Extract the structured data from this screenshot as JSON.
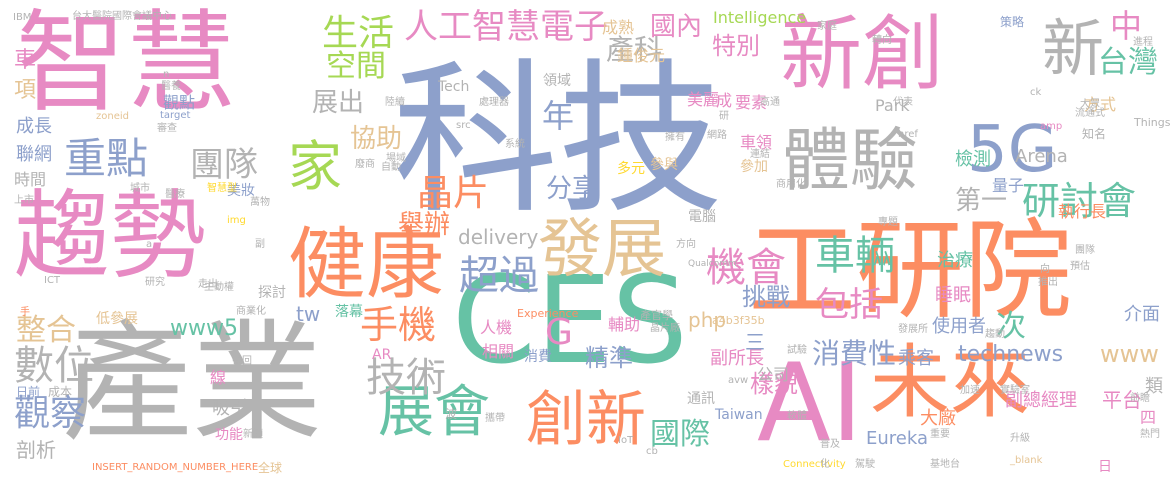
{
  "palette": {
    "teal": "#66c2a5",
    "orange": "#fc8d62",
    "blue": "#8da0cb",
    "pink": "#e78ac3",
    "green": "#a6d854",
    "yellow": "#ffd92f",
    "tan": "#e5c494",
    "gray": "#b3b3b3"
  },
  "words": [
    {
      "text": "科技",
      "color": "#8da0cb"
    },
    {
      "text": "產業",
      "color": "#b3b3b3"
    },
    {
      "text": "CES",
      "color": "#66c2a5"
    },
    {
      "text": "工研院",
      "color": "#fc8d62"
    },
    {
      "text": "智慧",
      "color": "#e78ac3"
    },
    {
      "text": "趨勢",
      "color": "#e78ac3"
    },
    {
      "text": "新創",
      "color": "#e78ac3"
    },
    {
      "text": "AI",
      "color": "#e78ac3"
    },
    {
      "text": "未來",
      "color": "#fc8d62"
    },
    {
      "text": "健康",
      "color": "#fc8d62"
    },
    {
      "text": "體驗",
      "color": "#b3b3b3"
    },
    {
      "text": "5G",
      "color": "#8da0cb"
    },
    {
      "text": "發展",
      "color": "#e5c494"
    },
    {
      "text": "創新",
      "color": "#fc8d62"
    },
    {
      "text": "展會",
      "color": "#66c2a5"
    },
    {
      "text": "新",
      "color": "#b3b3b3"
    },
    {
      "text": "家",
      "color": "#a6d854"
    },
    {
      "text": "生活",
      "color": "#a6d854"
    },
    {
      "text": "人工智慧電子",
      "color": "#e78ac3"
    },
    {
      "text": "重點",
      "color": "#8da0cb"
    },
    {
      "text": "團隊",
      "color": "#b3b3b3"
    },
    {
      "text": "空間",
      "color": "#a6d854"
    },
    {
      "text": "產科",
      "color": "#b3b3b3"
    },
    {
      "text": "國內",
      "color": "#e78ac3"
    },
    {
      "text": "特別",
      "color": "#e78ac3"
    },
    {
      "text": "中",
      "color": "#e78ac3"
    },
    {
      "text": "台灣",
      "color": "#66c2a5"
    },
    {
      "text": "晶片",
      "color": "#fc8d62"
    },
    {
      "text": "研討會",
      "color": "#66c2a5"
    },
    {
      "text": "機會",
      "color": "#e78ac3"
    },
    {
      "text": "車輛",
      "color": "#66c2a5"
    },
    {
      "text": "超過",
      "color": "#8da0cb"
    },
    {
      "text": "手機",
      "color": "#fc8d62"
    },
    {
      "text": "技術",
      "color": "#b3b3b3"
    },
    {
      "text": "數位",
      "color": "#b3b3b3"
    },
    {
      "text": "觀察",
      "color": "#8da0cb"
    },
    {
      "text": "整合",
      "color": "#e5c494"
    },
    {
      "text": "國際",
      "color": "#66c2a5"
    },
    {
      "text": "消費性",
      "color": "#8da0cb"
    },
    {
      "text": "包括",
      "color": "#e78ac3"
    },
    {
      "text": "年",
      "color": "#8da0cb"
    },
    {
      "text": "展出",
      "color": "#b3b3b3"
    },
    {
      "text": "協助",
      "color": "#e5c494"
    },
    {
      "text": "分享",
      "color": "#8da0cb"
    },
    {
      "text": "舉辦",
      "color": "#fc8d62"
    },
    {
      "text": "第一",
      "color": "#b3b3b3"
    },
    {
      "text": "挑戰",
      "color": "#8da0cb"
    },
    {
      "text": "精準",
      "color": "#8da0cb"
    },
    {
      "text": "樣貌",
      "color": "#e78ac3"
    },
    {
      "text": "次",
      "color": "#66c2a5"
    },
    {
      "text": "www5",
      "color": "#66c2a5"
    },
    {
      "text": "technews",
      "color": "#8da0cb"
    },
    {
      "text": "www",
      "color": "#e5c494"
    },
    {
      "text": "delivery",
      "color": "#b3b3b3"
    },
    {
      "text": "php",
      "color": "#e5c494"
    },
    {
      "text": "tw",
      "color": "#8da0cb"
    },
    {
      "text": "G",
      "color": "#e78ac3"
    },
    {
      "text": "Intelligence",
      "color": "#a6d854"
    },
    {
      "text": "Eureka",
      "color": "#8da0cb"
    },
    {
      "text": "Park",
      "color": "#b3b3b3"
    },
    {
      "text": "Arena",
      "color": "#b3b3b3"
    },
    {
      "text": "Tech",
      "color": "#b3b3b3"
    },
    {
      "text": "Taiwan",
      "color": "#8da0cb"
    },
    {
      "text": "a4b3f35b",
      "color": "#e5c494"
    },
    {
      "text": "Experience",
      "color": "#fc8d62"
    },
    {
      "text": "Connectivity",
      "color": "#ffd92f"
    },
    {
      "text": "INSERT_RANDOM_NUMBER_HERE",
      "color": "#fc8d62"
    },
    {
      "text": "Qualcomm",
      "color": "#b3b3b3"
    },
    {
      "text": "Things",
      "color": "#b3b3b3"
    },
    {
      "text": "href",
      "color": "#b3b3b3"
    },
    {
      "text": "IBM",
      "color": "#b3b3b3"
    },
    {
      "text": "台大醫院國際會議中心",
      "color": "#b3b3b3"
    },
    {
      "text": "車",
      "color": "#e78ac3"
    },
    {
      "text": "項",
      "color": "#e5c494"
    },
    {
      "text": "成長",
      "color": "#8da0cb"
    },
    {
      "text": "聯網",
      "color": "#8da0cb"
    },
    {
      "text": "時間",
      "color": "#b3b3b3"
    },
    {
      "text": "成熟",
      "color": "#e5c494"
    },
    {
      "text": "鍾俊元",
      "color": "#e5c494"
    },
    {
      "text": "領域",
      "color": "#b3b3b3"
    },
    {
      "text": "美麗",
      "color": "#e78ac3"
    },
    {
      "text": "要素",
      "color": "#e78ac3"
    },
    {
      "text": "車領",
      "color": "#e78ac3"
    },
    {
      "text": "參加",
      "color": "#e5c494"
    },
    {
      "text": "參與",
      "color": "#e5c494"
    },
    {
      "text": "多元",
      "color": "#ffd92f"
    },
    {
      "text": "檢測",
      "color": "#66c2a5"
    },
    {
      "text": "量子",
      "color": "#8da0cb"
    },
    {
      "text": "方式",
      "color": "#e5c494"
    },
    {
      "text": "執行長",
      "color": "#fc8d62"
    },
    {
      "text": "電腦",
      "color": "#b3b3b3"
    },
    {
      "text": "治療",
      "color": "#66c2a5"
    },
    {
      "text": "睡眠",
      "color": "#e78ac3"
    },
    {
      "text": "使用者",
      "color": "#8da0cb"
    },
    {
      "text": "副總經理",
      "color": "#e78ac3"
    },
    {
      "text": "乘客",
      "color": "#8da0cb"
    },
    {
      "text": "大廠",
      "color": "#fc8d62"
    },
    {
      "text": "平台",
      "color": "#e78ac3"
    },
    {
      "text": "介面",
      "color": "#8da0cb"
    },
    {
      "text": "副所長",
      "color": "#e78ac3"
    },
    {
      "text": "公司",
      "color": "#b3b3b3"
    },
    {
      "text": "三",
      "color": "#8da0cb"
    },
    {
      "text": "通訊",
      "color": "#b3b3b3"
    },
    {
      "text": "相關",
      "color": "#e78ac3"
    },
    {
      "text": "消費",
      "color": "#8da0cb"
    },
    {
      "text": "人機",
      "color": "#e78ac3"
    },
    {
      "text": "輔助",
      "color": "#e78ac3"
    },
    {
      "text": "產官學",
      "color": "#b3b3b3"
    },
    {
      "text": "落幕",
      "color": "#66c2a5"
    },
    {
      "text": "探討",
      "color": "#b3b3b3"
    },
    {
      "text": "吸引",
      "color": "#b3b3b3"
    },
    {
      "text": "功能",
      "color": "#e78ac3"
    },
    {
      "text": "美妝",
      "color": "#8da0cb"
    },
    {
      "text": "低參展",
      "color": "#e5c494"
    },
    {
      "text": "成本",
      "color": "#b3b3b3"
    },
    {
      "text": "剖析",
      "color": "#b3b3b3"
    },
    {
      "text": "觀點",
      "color": "#8da0cb"
    },
    {
      "text": "線",
      "color": "#e78ac3"
    },
    {
      "text": "全球",
      "color": "#e5c494"
    },
    {
      "text": "AR",
      "color": "#e78ac3"
    },
    {
      "text": "四",
      "color": "#e78ac3"
    },
    {
      "text": "類",
      "color": "#b3b3b3"
    },
    {
      "text": "研究",
      "color": "#b3b3b3"
    },
    {
      "text": "主動權",
      "color": "#b3b3b3"
    },
    {
      "text": "src",
      "color": "#b3b3b3"
    },
    {
      "text": "target",
      "color": "#8da0cb"
    },
    {
      "text": "amp",
      "color": "#e78ac3"
    },
    {
      "text": "ck",
      "color": "#b3b3b3"
    },
    {
      "text": "ICT",
      "color": "#b3b3b3"
    },
    {
      "text": "IoT",
      "color": "#b3b3b3"
    },
    {
      "text": "cb",
      "color": "#b3b3b3"
    },
    {
      "text": "_blank",
      "color": "#e5c494"
    },
    {
      "text": "zoneid",
      "color": "#e5c494"
    },
    {
      "text": "img",
      "color": "#ffd92f"
    },
    {
      "text": "avw",
      "color": "#b3b3b3"
    },
    {
      "text": "策略",
      "color": "#8da0cb"
    },
    {
      "text": "知名",
      "color": "#b3b3b3"
    },
    {
      "text": "上市",
      "color": "#b3b3b3"
    },
    {
      "text": "手",
      "color": "#fc8d62"
    },
    {
      "text": "日前",
      "color": "#8da0cb"
    },
    {
      "text": "日",
      "color": "#e78ac3"
    },
    {
      "text": "實驗室",
      "color": "#b3b3b3"
    },
    {
      "text": "普及",
      "color": "#b3b3b3"
    },
    {
      "text": "加速",
      "color": "#b3b3b3"
    },
    {
      "text": "波",
      "color": "#b3b3b3"
    },
    {
      "text": "晶片廠",
      "color": "#b3b3b3"
    },
    {
      "text": "發展所",
      "color": "#b3b3b3"
    },
    {
      "text": "處理器",
      "color": "#b3b3b3"
    },
    {
      "text": "系統",
      "color": "#b3b3b3"
    },
    {
      "text": "網路",
      "color": "#b3b3b3"
    },
    {
      "text": "商用化",
      "color": "#b3b3b3"
    },
    {
      "text": "專題",
      "color": "#b3b3b3"
    },
    {
      "text": "預估",
      "color": "#b3b3b3"
    },
    {
      "text": "推出",
      "color": "#b3b3b3"
    },
    {
      "text": "團隊",
      "color": "#b3b3b3"
    },
    {
      "text": "趨動",
      "color": "#b3b3b3"
    },
    {
      "text": "前瞻",
      "color": "#b3b3b3"
    },
    {
      "text": "熱門",
      "color": "#b3b3b3"
    },
    {
      "text": "升級",
      "color": "#b3b3b3"
    },
    {
      "text": "基地台",
      "color": "#b3b3b3"
    },
    {
      "text": "駕駛",
      "color": "#b3b3b3"
    },
    {
      "text": "大眾",
      "color": "#b3b3b3"
    },
    {
      "text": "進程",
      "color": "#b3b3b3"
    },
    {
      "text": "流通式",
      "color": "#b3b3b3"
    },
    {
      "text": "轉向",
      "color": "#b3b3b3"
    },
    {
      "text": "家庭",
      "color": "#b3b3b3"
    },
    {
      "text": "代表",
      "color": "#b3b3b3"
    },
    {
      "text": "高通",
      "color": "#b3b3b3"
    },
    {
      "text": "連結",
      "color": "#b3b3b3"
    },
    {
      "text": "擁有",
      "color": "#b3b3b3"
    },
    {
      "text": "陸續",
      "color": "#b3b3b3"
    },
    {
      "text": "場域",
      "color": "#b3b3b3"
    },
    {
      "text": "自動",
      "color": "#b3b3b3"
    },
    {
      "text": "廢商",
      "color": "#b3b3b3"
    },
    {
      "text": "萬物",
      "color": "#b3b3b3"
    },
    {
      "text": "城市",
      "color": "#b3b3b3"
    },
    {
      "text": "醫療",
      "color": "#b3b3b3"
    },
    {
      "text": "審查",
      "color": "#b3b3b3"
    },
    {
      "text": "醫養",
      "color": "#b3b3b3"
    },
    {
      "text": "新穎",
      "color": "#b3b3b3"
    },
    {
      "text": "帶回",
      "color": "#b3b3b3"
    },
    {
      "text": "商業化",
      "color": "#b3b3b3"
    },
    {
      "text": "走出",
      "color": "#b3b3b3"
    },
    {
      "text": "軟體",
      "color": "#b3b3b3"
    },
    {
      "text": "重要",
      "color": "#b3b3b3"
    },
    {
      "text": "試驗",
      "color": "#b3b3b3"
    },
    {
      "text": "智慧型",
      "color": "#ffd92f"
    },
    {
      "text": "副",
      "color": "#b3b3b3"
    },
    {
      "text": "方向",
      "color": "#b3b3b3"
    },
    {
      "text": "攜帶",
      "color": "#b3b3b3"
    },
    {
      "text": "n",
      "color": "#b3b3b3"
    },
    {
      "text": "成",
      "color": "#e78ac3"
    },
    {
      "text": "研",
      "color": "#b3b3b3"
    },
    {
      "text": "化",
      "color": "#b3b3b3"
    },
    {
      "text": "向",
      "color": "#b3b3b3"
    },
    {
      "text": "a",
      "color": "#b3b3b3"
    }
  ]
}
